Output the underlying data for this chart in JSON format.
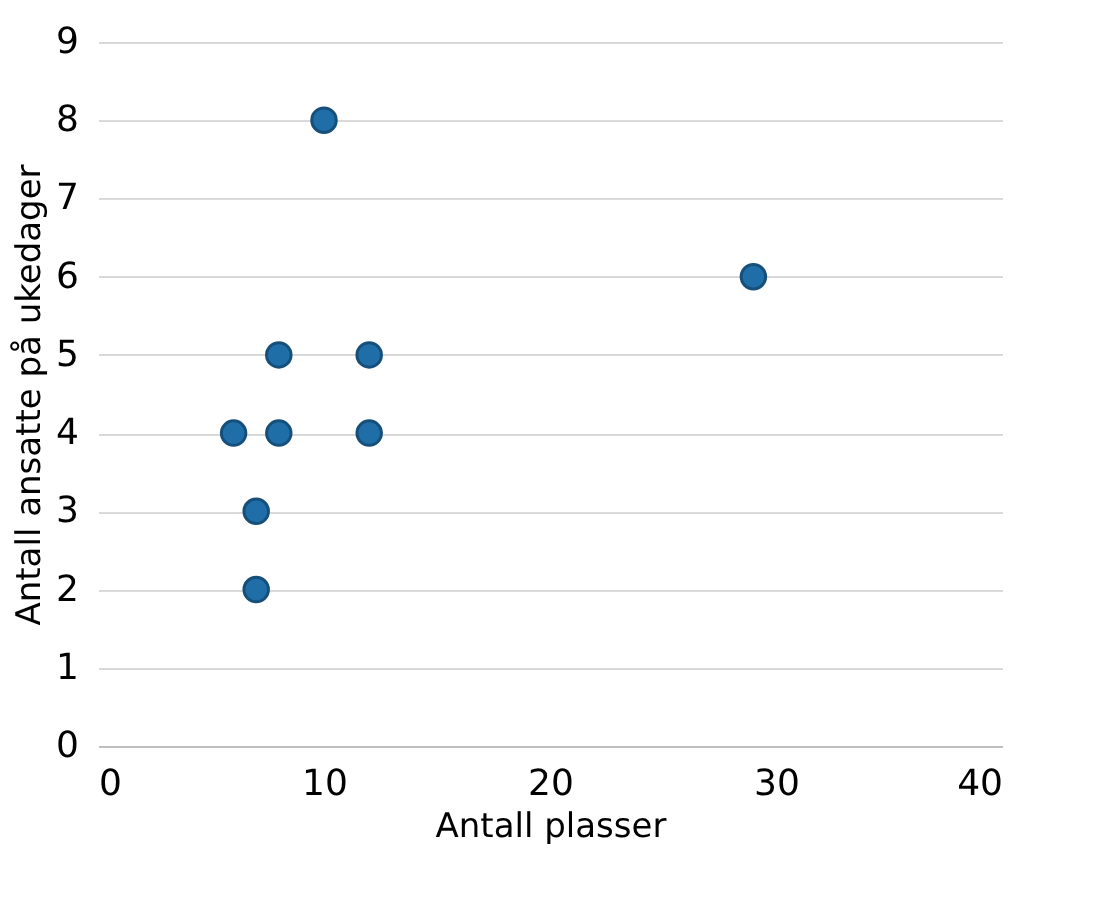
{
  "chart_data": {
    "type": "scatter",
    "xlabel": "Antall plasser",
    "ylabel": "Antall ansatte på ukedager",
    "x": [
      10,
      29,
      8,
      12,
      6,
      8,
      12,
      7,
      7
    ],
    "series": [
      {
        "color": "#1f6ea8",
        "values": [
          8,
          6,
          5,
          5,
          4,
          4,
          4,
          3,
          2
        ]
      }
    ],
    "xlim": [
      0,
      40
    ],
    "xticks": [
      0,
      10,
      20,
      30,
      40
    ],
    "ylim": [
      0,
      9
    ],
    "yticks": [
      0,
      1,
      2,
      3,
      4,
      5,
      6,
      7,
      8,
      9
    ],
    "grid": "y",
    "marker": "circle",
    "legend": false
  }
}
